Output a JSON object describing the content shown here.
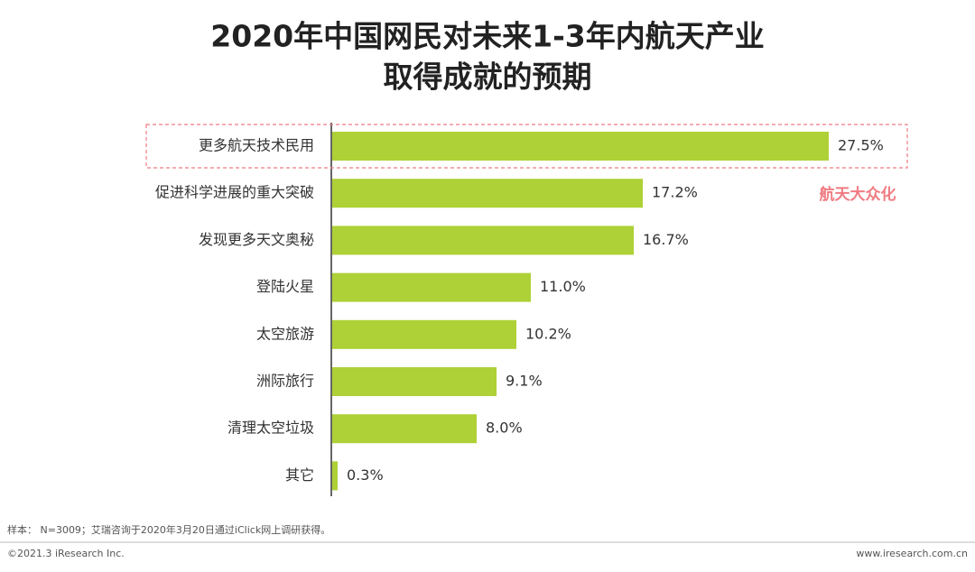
{
  "chart_data": {
    "type": "bar",
    "orientation": "horizontal",
    "title": [
      "2020年中国网民对未来1-3年内航天产业",
      "取得成就的预期"
    ],
    "categories": [
      "更多航天技术民用",
      "促进科学进展的重大突破",
      "发现更多天文奥秘",
      "登陆火星",
      "太空旅游",
      "洲际旅行",
      "清理太空垃圾",
      "其它"
    ],
    "values": [
      27.5,
      17.2,
      16.7,
      11.0,
      10.2,
      9.1,
      8.0,
      0.3
    ],
    "value_labels": [
      "27.5%",
      "17.2%",
      "16.7%",
      "11.0%",
      "10.2%",
      "9.1%",
      "8.0%",
      "0.3%"
    ],
    "color": "#add136",
    "annotation": "航天大众化",
    "annotation_color": "#f07c82"
  },
  "footer": {
    "note": "样本： N=3009；艾瑞咨询于2020年3月20日通过iClick网上调研获得。",
    "copyright": "©2021.3 iResearch Inc.",
    "website": "www.iresearch.com.cn"
  }
}
